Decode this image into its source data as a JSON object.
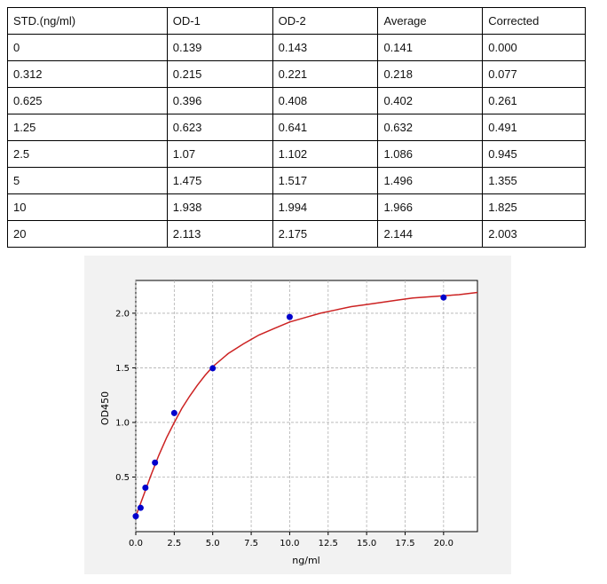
{
  "table": {
    "headers": [
      "STD.(ng/ml)",
      "OD-1",
      "OD-2",
      "Average",
      "Corrected"
    ],
    "rows": [
      [
        "0",
        "0.139",
        "0.143",
        "0.141",
        "0.000"
      ],
      [
        "0.312",
        "0.215",
        "0.221",
        "0.218",
        "0.077"
      ],
      [
        "0.625",
        "0.396",
        "0.408",
        "0.402",
        "0.261"
      ],
      [
        "1.25",
        "0.623",
        "0.641",
        "0.632",
        "0.491"
      ],
      [
        "2.5",
        "1.07",
        "1.102",
        "1.086",
        "0.945"
      ],
      [
        "5",
        "1.475",
        "1.517",
        "1.496",
        "1.355"
      ],
      [
        "10",
        "1.938",
        "1.994",
        "1.966",
        "1.825"
      ],
      [
        "20",
        "2.113",
        "2.175",
        "2.144",
        "2.003"
      ]
    ]
  },
  "chart_data": {
    "type": "scatter",
    "xlabel": "ng/ml",
    "ylabel": "OD450",
    "xlim": [
      0,
      22.2
    ],
    "ylim": [
      0.0,
      2.3
    ],
    "x_ticks": [
      "0.0",
      "2.5",
      "5.0",
      "7.5",
      "10.0",
      "12.5",
      "15.0",
      "17.5",
      "20.0"
    ],
    "y_ticks": [
      "0.5",
      "1.0",
      "1.5",
      "2.0"
    ],
    "grid": true,
    "points": {
      "x": [
        0,
        0.312,
        0.625,
        1.25,
        2.5,
        5,
        10,
        20
      ],
      "y": [
        0.141,
        0.218,
        0.402,
        0.632,
        1.086,
        1.496,
        1.966,
        2.144
      ]
    },
    "fit_curve": {
      "x": [
        0,
        0.5,
        1,
        1.5,
        2,
        2.5,
        3,
        3.5,
        4,
        4.5,
        5,
        6,
        7,
        8,
        9,
        10,
        11,
        12,
        13,
        14,
        15,
        16,
        17,
        18,
        19,
        20,
        21,
        22.2
      ],
      "y": [
        0.14,
        0.33,
        0.52,
        0.7,
        0.86,
        1.0,
        1.13,
        1.24,
        1.34,
        1.43,
        1.51,
        1.63,
        1.72,
        1.8,
        1.86,
        1.92,
        1.96,
        2.0,
        2.03,
        2.06,
        2.08,
        2.1,
        2.12,
        2.14,
        2.15,
        2.16,
        2.17,
        2.19
      ]
    },
    "colors": {
      "points": "#0000cc",
      "curve": "#cc2222",
      "grid": "#b0b0b0"
    }
  }
}
